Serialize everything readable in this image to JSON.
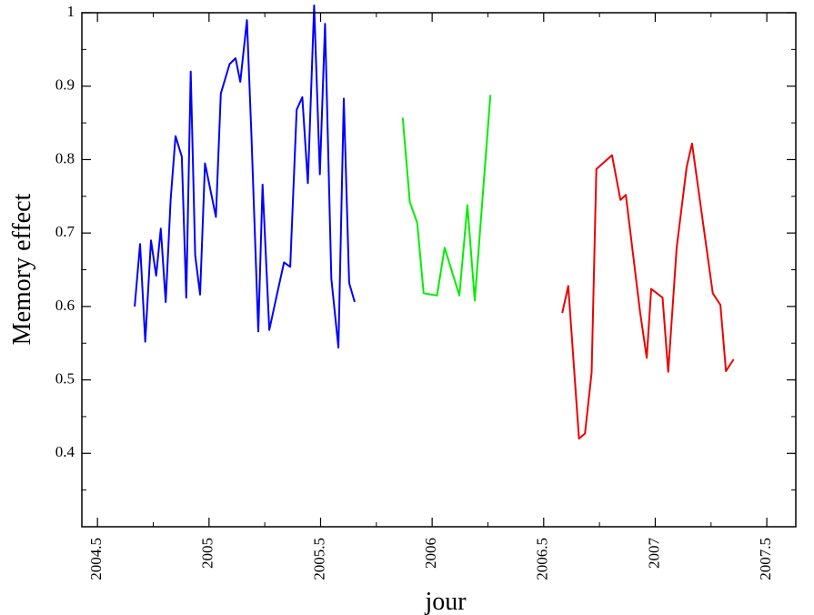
{
  "chart_data": {
    "type": "line",
    "title": "",
    "xlabel": "jour",
    "ylabel": "Memory effect",
    "xlim": [
      2004.43,
      2007.63
    ],
    "ylim": [
      0.3,
      1.0
    ],
    "x_ticks": [
      2004.5,
      2005,
      2005.5,
      2006,
      2006.5,
      2007,
      2007.5
    ],
    "x_tick_labels": [
      "2004.5",
      "2005",
      "2005.5",
      "2006",
      "2006.5",
      "2007",
      "2007.5"
    ],
    "y_ticks": [
      0.4,
      0.5,
      0.6,
      0.7,
      0.8,
      0.9,
      1.0
    ],
    "y_tick_labels": [
      "0.4",
      "0.5",
      "0.6",
      "0.7",
      "0.8",
      "0.9",
      "1"
    ],
    "grid": false,
    "legend": "none",
    "series": [
      {
        "color": "#0000ff",
        "points": [
          [
            2004.667,
            0.6
          ],
          [
            2004.691,
            0.685
          ],
          [
            2004.714,
            0.552
          ],
          [
            2004.74,
            0.69
          ],
          [
            2004.763,
            0.642
          ],
          [
            2004.784,
            0.706
          ],
          [
            2004.806,
            0.606
          ],
          [
            2004.828,
            0.745
          ],
          [
            2004.85,
            0.832
          ],
          [
            2004.878,
            0.804
          ],
          [
            2004.898,
            0.612
          ],
          [
            2004.918,
            0.92
          ],
          [
            2004.938,
            0.67
          ],
          [
            2004.96,
            0.616
          ],
          [
            2004.982,
            0.795
          ],
          [
            2005.031,
            0.722
          ],
          [
            2005.053,
            0.89
          ],
          [
            2005.092,
            0.93
          ],
          [
            2005.119,
            0.938
          ],
          [
            2005.14,
            0.906
          ],
          [
            2005.17,
            0.99
          ],
          [
            2005.19,
            0.835
          ],
          [
            2005.221,
            0.566
          ],
          [
            2005.24,
            0.766
          ],
          [
            2005.27,
            0.568
          ],
          [
            2005.3,
            0.61
          ],
          [
            2005.336,
            0.66
          ],
          [
            2005.364,
            0.654
          ],
          [
            2005.393,
            0.868
          ],
          [
            2005.418,
            0.885
          ],
          [
            2005.443,
            0.768
          ],
          [
            2005.471,
            1.01
          ],
          [
            2005.497,
            0.78
          ],
          [
            2005.52,
            0.985
          ],
          [
            2005.548,
            0.638
          ],
          [
            2005.58,
            0.544
          ],
          [
            2005.604,
            0.883
          ],
          [
            2005.628,
            0.632
          ],
          [
            2005.653,
            0.606
          ]
        ]
      },
      {
        "color": "#00ee00",
        "points": [
          [
            2005.868,
            0.857
          ],
          [
            2005.9,
            0.742
          ],
          [
            2005.933,
            0.714
          ],
          [
            2005.962,
            0.618
          ],
          [
            2006.022,
            0.615
          ],
          [
            2006.056,
            0.68
          ],
          [
            2006.122,
            0.615
          ],
          [
            2006.158,
            0.738
          ],
          [
            2006.191,
            0.608
          ],
          [
            2006.261,
            0.888
          ]
        ]
      },
      {
        "color": "#ee0000",
        "points": [
          [
            2006.583,
            0.591
          ],
          [
            2006.61,
            0.628
          ],
          [
            2006.658,
            0.42
          ],
          [
            2006.685,
            0.427
          ],
          [
            2006.715,
            0.51
          ],
          [
            2006.736,
            0.787
          ],
          [
            2006.806,
            0.806
          ],
          [
            2006.844,
            0.745
          ],
          [
            2006.868,
            0.752
          ],
          [
            2006.932,
            0.592
          ],
          [
            2006.962,
            0.53
          ],
          [
            2006.982,
            0.624
          ],
          [
            2007.033,
            0.612
          ],
          [
            2007.058,
            0.511
          ],
          [
            2007.096,
            0.68
          ],
          [
            2007.141,
            0.79
          ],
          [
            2007.165,
            0.822
          ],
          [
            2007.258,
            0.618
          ],
          [
            2007.292,
            0.602
          ],
          [
            2007.317,
            0.512
          ],
          [
            2007.351,
            0.528
          ]
        ]
      }
    ]
  }
}
